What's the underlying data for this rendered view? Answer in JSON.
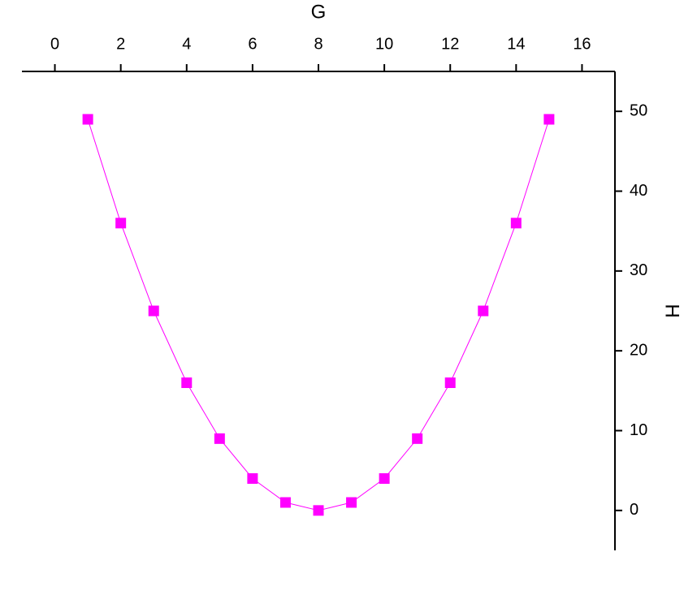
{
  "chart_data": {
    "type": "line",
    "x_label": "G",
    "y_label": "H",
    "x": [
      1,
      2,
      3,
      4,
      5,
      6,
      7,
      8,
      9,
      10,
      11,
      12,
      13,
      14,
      15
    ],
    "series": [
      {
        "color": "#ff00ff",
        "values": [
          49,
          36,
          25,
          16,
          9,
          4,
          1,
          0,
          1,
          4,
          9,
          16,
          25,
          36,
          49
        ]
      }
    ],
    "xlim": [
      -1,
      17
    ],
    "xticks": [
      0,
      2,
      4,
      6,
      8,
      10,
      12,
      14,
      16
    ],
    "ylim": [
      -5,
      55
    ],
    "yticks": [
      0,
      10,
      20,
      30,
      40,
      50
    ],
    "x_axis_position": "top",
    "y_axis_position": "right",
    "grid": false,
    "markers": "square"
  }
}
